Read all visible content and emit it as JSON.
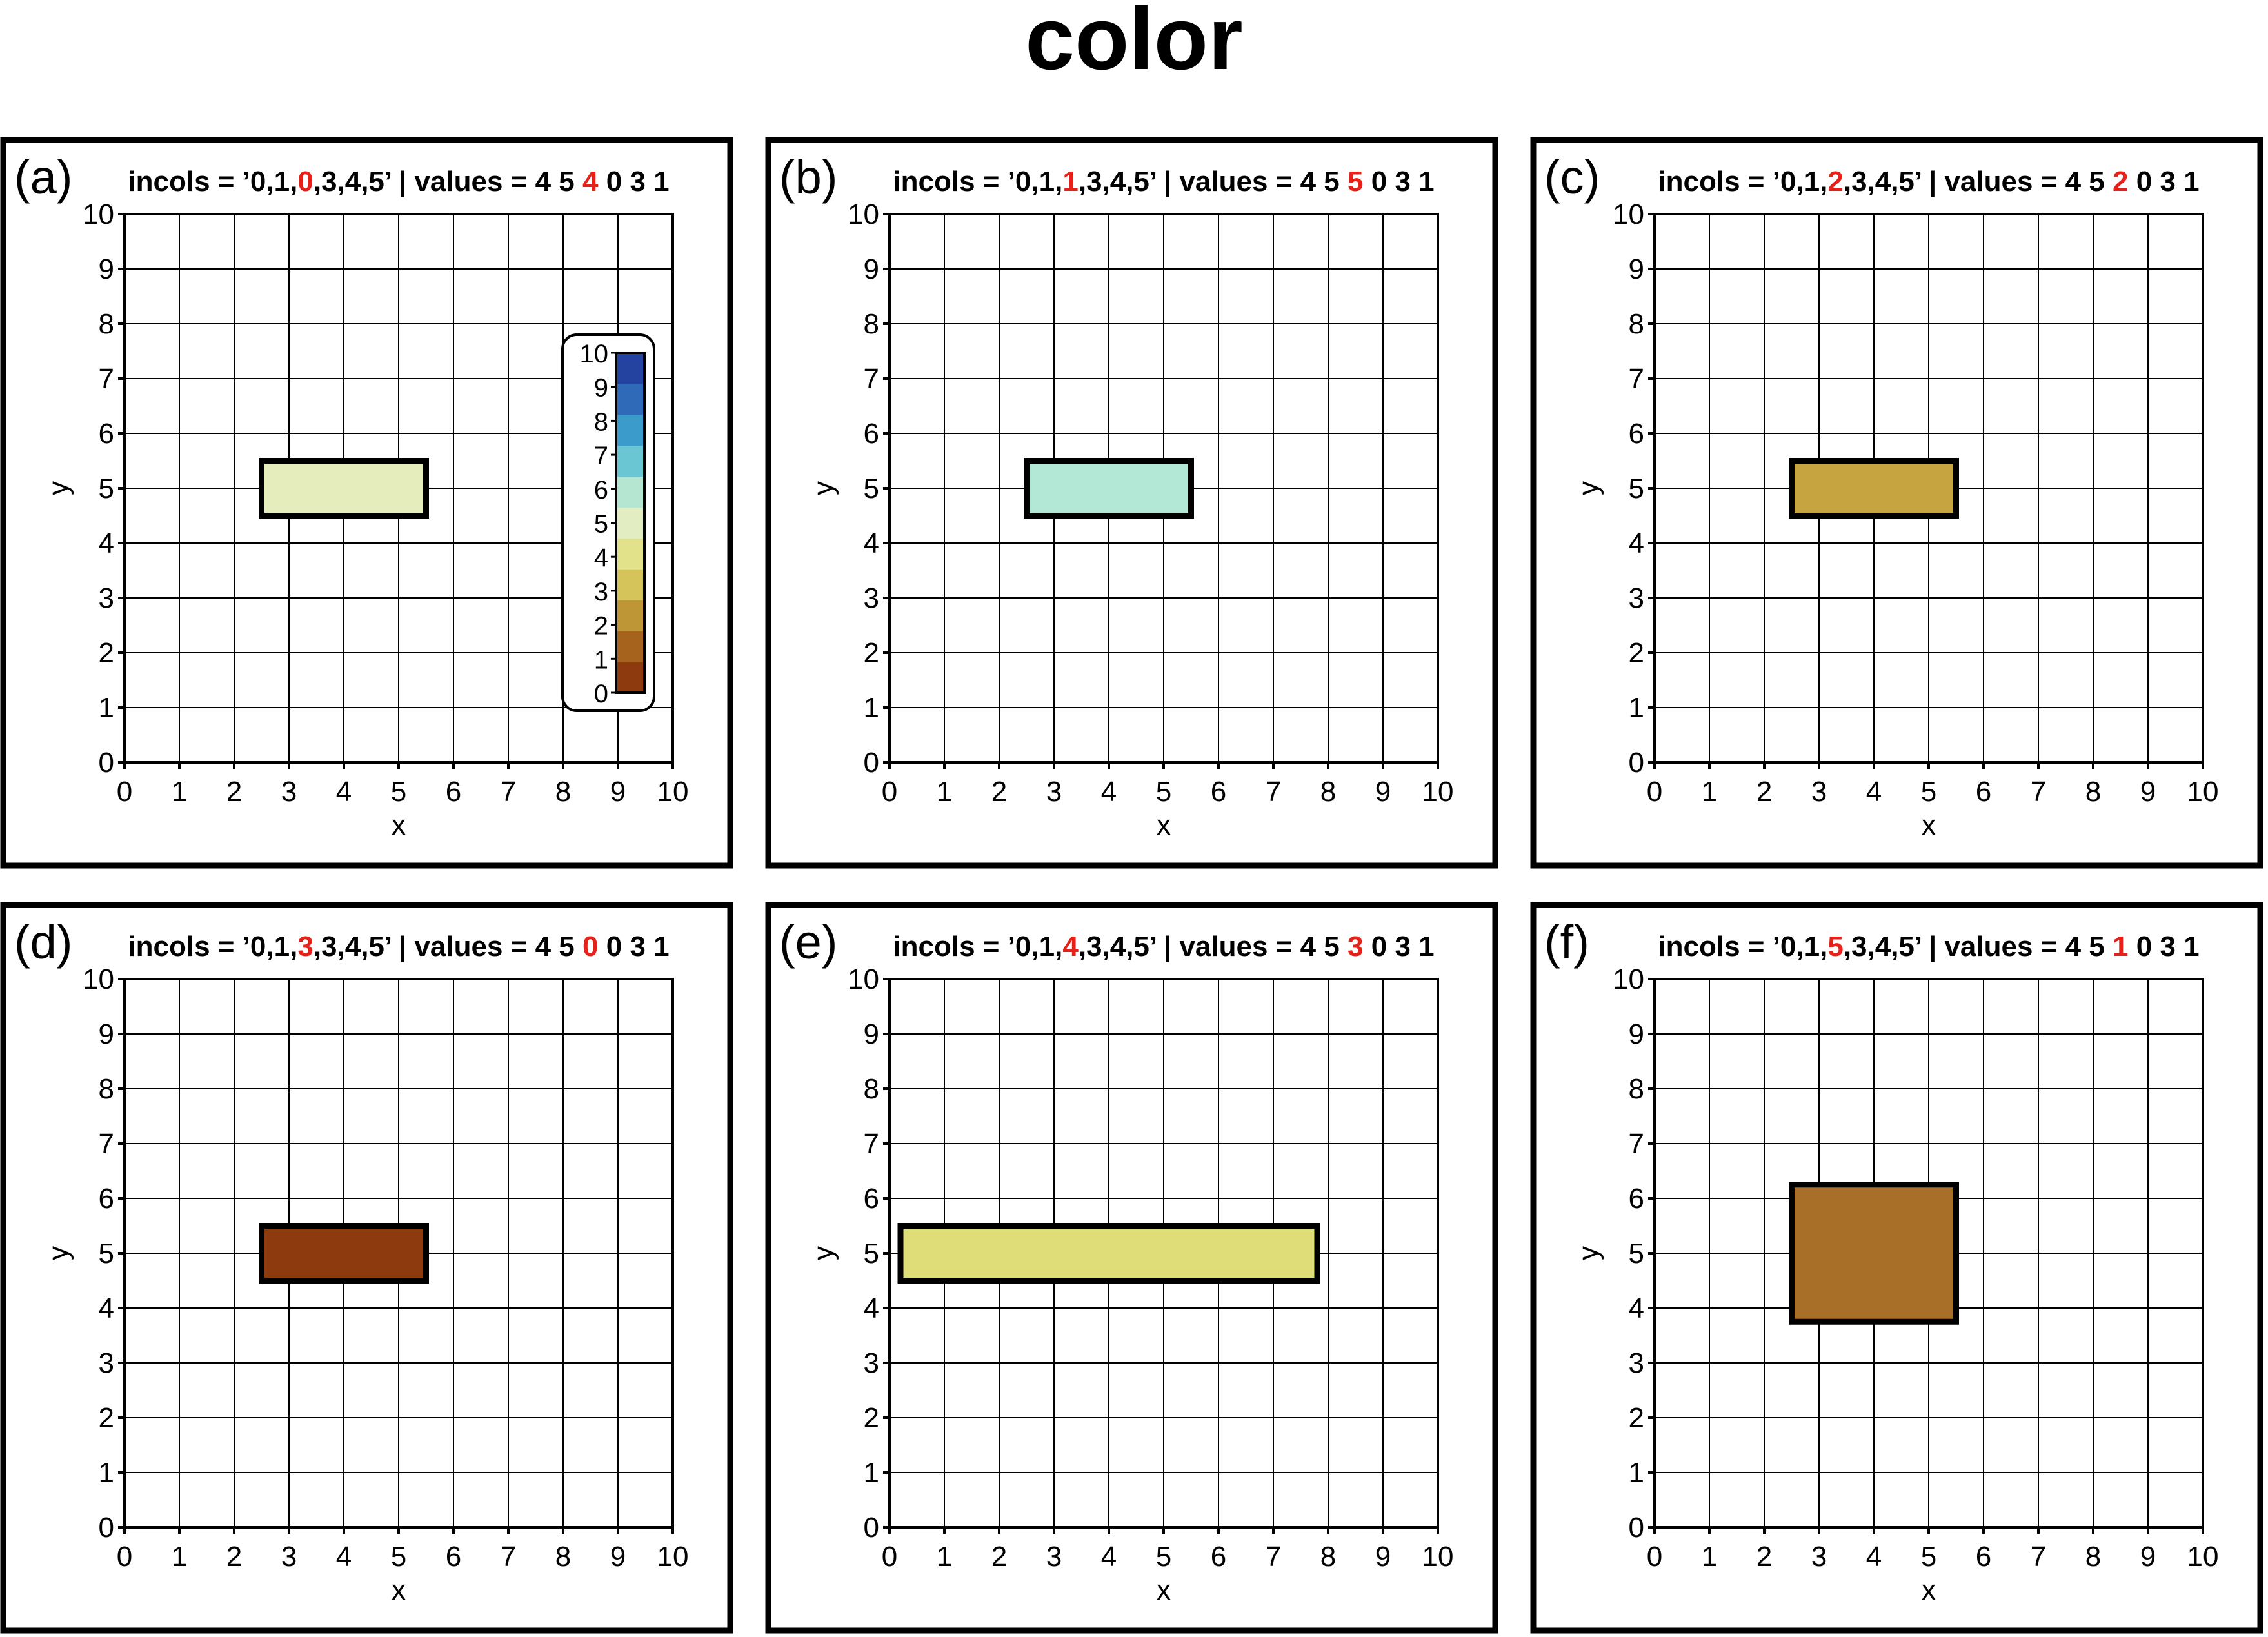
{
  "page_title": "color",
  "chart_data": [
    {
      "type": "scatter",
      "panel_label": "(a)",
      "title_segments": [
        {
          "text": "incols = ’0,1,",
          "highlight": false
        },
        {
          "text": "0",
          "highlight": true
        },
        {
          "text": ",3,4,5’ | values = 4 5 ",
          "highlight": false
        },
        {
          "text": "4",
          "highlight": true
        },
        {
          "text": " 0 3 1",
          "highlight": false
        }
      ],
      "xlabel": "x",
      "ylabel": "y",
      "xlim": [
        0,
        10
      ],
      "ylim": [
        0,
        10
      ],
      "xticks": [
        "0",
        "1",
        "2",
        "3",
        "4",
        "5",
        "6",
        "7",
        "8",
        "9",
        "10"
      ],
      "yticks": [
        "0",
        "1",
        "2",
        "3",
        "4",
        "5",
        "6",
        "7",
        "8",
        "9",
        "10"
      ],
      "grid": true,
      "symbol": {
        "shape": "rectangle",
        "x": 4,
        "y": 5,
        "width": 3,
        "height": 1,
        "color_value": 4,
        "fill": "#e6edbc"
      },
      "colorbar": {
        "placement": "inside-right",
        "ticks": [
          "0",
          "1",
          "2",
          "3",
          "4",
          "5",
          "6",
          "7",
          "8",
          "9",
          "10"
        ],
        "colors": [
          "#8e3a0f",
          "#a5631d",
          "#bf9636",
          "#d4c45a",
          "#e1e28a",
          "#e2eec1",
          "#b5e6d2",
          "#6bc6d4",
          "#3b9bcb",
          "#2f6ab8",
          "#2443a1"
        ]
      }
    },
    {
      "type": "scatter",
      "panel_label": "(b)",
      "title_segments": [
        {
          "text": "incols = ’0,1,",
          "highlight": false
        },
        {
          "text": "1",
          "highlight": true
        },
        {
          "text": ",3,4,5’ | values = 4 5 ",
          "highlight": false
        },
        {
          "text": "5",
          "highlight": true
        },
        {
          "text": " 0 3 1",
          "highlight": false
        }
      ],
      "xlabel": "x",
      "ylabel": "y",
      "xlim": [
        0,
        10
      ],
      "ylim": [
        0,
        10
      ],
      "xticks": [
        "0",
        "1",
        "2",
        "3",
        "4",
        "5",
        "6",
        "7",
        "8",
        "9",
        "10"
      ],
      "yticks": [
        "0",
        "1",
        "2",
        "3",
        "4",
        "5",
        "6",
        "7",
        "8",
        "9",
        "10"
      ],
      "grid": true,
      "symbol": {
        "shape": "rectangle",
        "x": 4,
        "y": 5,
        "width": 3,
        "height": 1,
        "color_value": 5,
        "fill": "#b3e8d7"
      }
    },
    {
      "type": "scatter",
      "panel_label": "(c)",
      "title_segments": [
        {
          "text": "incols = ’0,1,",
          "highlight": false
        },
        {
          "text": "2",
          "highlight": true
        },
        {
          "text": ",3,4,5’ | values = 4 5 ",
          "highlight": false
        },
        {
          "text": "2",
          "highlight": true
        },
        {
          "text": " 0 3 1",
          "highlight": false
        }
      ],
      "xlabel": "x",
      "ylabel": "y",
      "xlim": [
        0,
        10
      ],
      "ylim": [
        0,
        10
      ],
      "xticks": [
        "0",
        "1",
        "2",
        "3",
        "4",
        "5",
        "6",
        "7",
        "8",
        "9",
        "10"
      ],
      "yticks": [
        "0",
        "1",
        "2",
        "3",
        "4",
        "5",
        "6",
        "7",
        "8",
        "9",
        "10"
      ],
      "grid": true,
      "symbol": {
        "shape": "rectangle",
        "x": 4,
        "y": 5,
        "width": 3,
        "height": 1,
        "color_value": 2,
        "fill": "#c6a43f"
      }
    },
    {
      "type": "scatter",
      "panel_label": "(d)",
      "title_segments": [
        {
          "text": "incols = ’0,1,",
          "highlight": false
        },
        {
          "text": "3",
          "highlight": true
        },
        {
          "text": ",3,4,5’ | values = 4 5 ",
          "highlight": false
        },
        {
          "text": "0",
          "highlight": true
        },
        {
          "text": " 0 3 1",
          "highlight": false
        }
      ],
      "xlabel": "x",
      "ylabel": "y",
      "xlim": [
        0,
        10
      ],
      "ylim": [
        0,
        10
      ],
      "xticks": [
        "0",
        "1",
        "2",
        "3",
        "4",
        "5",
        "6",
        "7",
        "8",
        "9",
        "10"
      ],
      "yticks": [
        "0",
        "1",
        "2",
        "3",
        "4",
        "5",
        "6",
        "7",
        "8",
        "9",
        "10"
      ],
      "grid": true,
      "symbol": {
        "shape": "rectangle",
        "x": 4,
        "y": 5,
        "width": 3,
        "height": 1,
        "color_value": 0,
        "fill": "#8e3a0f"
      }
    },
    {
      "type": "scatter",
      "panel_label": "(e)",
      "title_segments": [
        {
          "text": "incols = ’0,1,",
          "highlight": false
        },
        {
          "text": "4",
          "highlight": true
        },
        {
          "text": ",3,4,5’ | values = 4 5 ",
          "highlight": false
        },
        {
          "text": "3",
          "highlight": true
        },
        {
          "text": " 0 3 1",
          "highlight": false
        }
      ],
      "xlabel": "x",
      "ylabel": "y",
      "xlim": [
        0,
        10
      ],
      "ylim": [
        0,
        10
      ],
      "xticks": [
        "0",
        "1",
        "2",
        "3",
        "4",
        "5",
        "6",
        "7",
        "8",
        "9",
        "10"
      ],
      "yticks": [
        "0",
        "1",
        "2",
        "3",
        "4",
        "5",
        "6",
        "7",
        "8",
        "9",
        "10"
      ],
      "grid": true,
      "symbol": {
        "shape": "rectangle",
        "x": 4,
        "y": 5,
        "width": 7.6,
        "height": 1,
        "color_value": 3,
        "fill": "#dedd78"
      }
    },
    {
      "type": "scatter",
      "panel_label": "(f)",
      "title_segments": [
        {
          "text": "incols = ’0,1,",
          "highlight": false
        },
        {
          "text": "5",
          "highlight": true
        },
        {
          "text": ",3,4,5’ | values = 4 5 ",
          "highlight": false
        },
        {
          "text": "1",
          "highlight": true
        },
        {
          "text": " 0 3 1",
          "highlight": false
        }
      ],
      "xlabel": "x",
      "ylabel": "y",
      "xlim": [
        0,
        10
      ],
      "ylim": [
        0,
        10
      ],
      "xticks": [
        "0",
        "1",
        "2",
        "3",
        "4",
        "5",
        "6",
        "7",
        "8",
        "9",
        "10"
      ],
      "yticks": [
        "0",
        "1",
        "2",
        "3",
        "4",
        "5",
        "6",
        "7",
        "8",
        "9",
        "10"
      ],
      "grid": true,
      "symbol": {
        "shape": "rectangle",
        "x": 4,
        "y": 5,
        "width": 3,
        "height": 2.5,
        "color_value": 1,
        "fill": "#a86f28"
      }
    }
  ],
  "colors": {
    "highlight": "#e5211a",
    "text": "#000000",
    "grid": "#000000"
  }
}
